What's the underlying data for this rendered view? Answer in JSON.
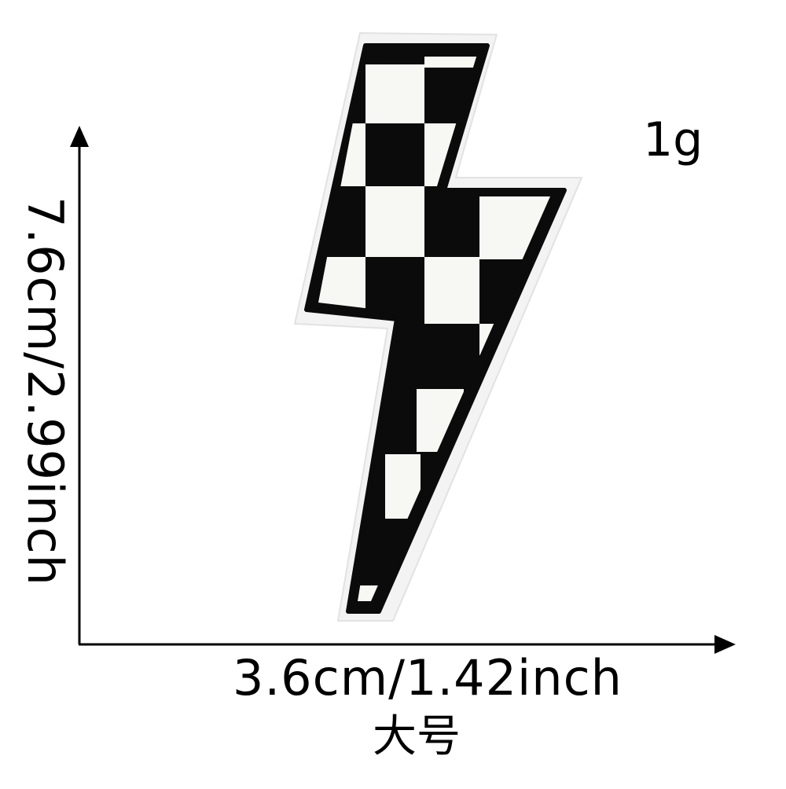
{
  "product": {
    "weight": "1g",
    "height_label": "7.6cm/2.99inch",
    "width_label": "3.6cm/1.42inch",
    "size_label": "大号",
    "patch_colors": {
      "checker_dark": "#0b0b0b",
      "checker_light": "#f7f7f3",
      "border": "#f4f4f4",
      "background": "#ffffff"
    }
  }
}
